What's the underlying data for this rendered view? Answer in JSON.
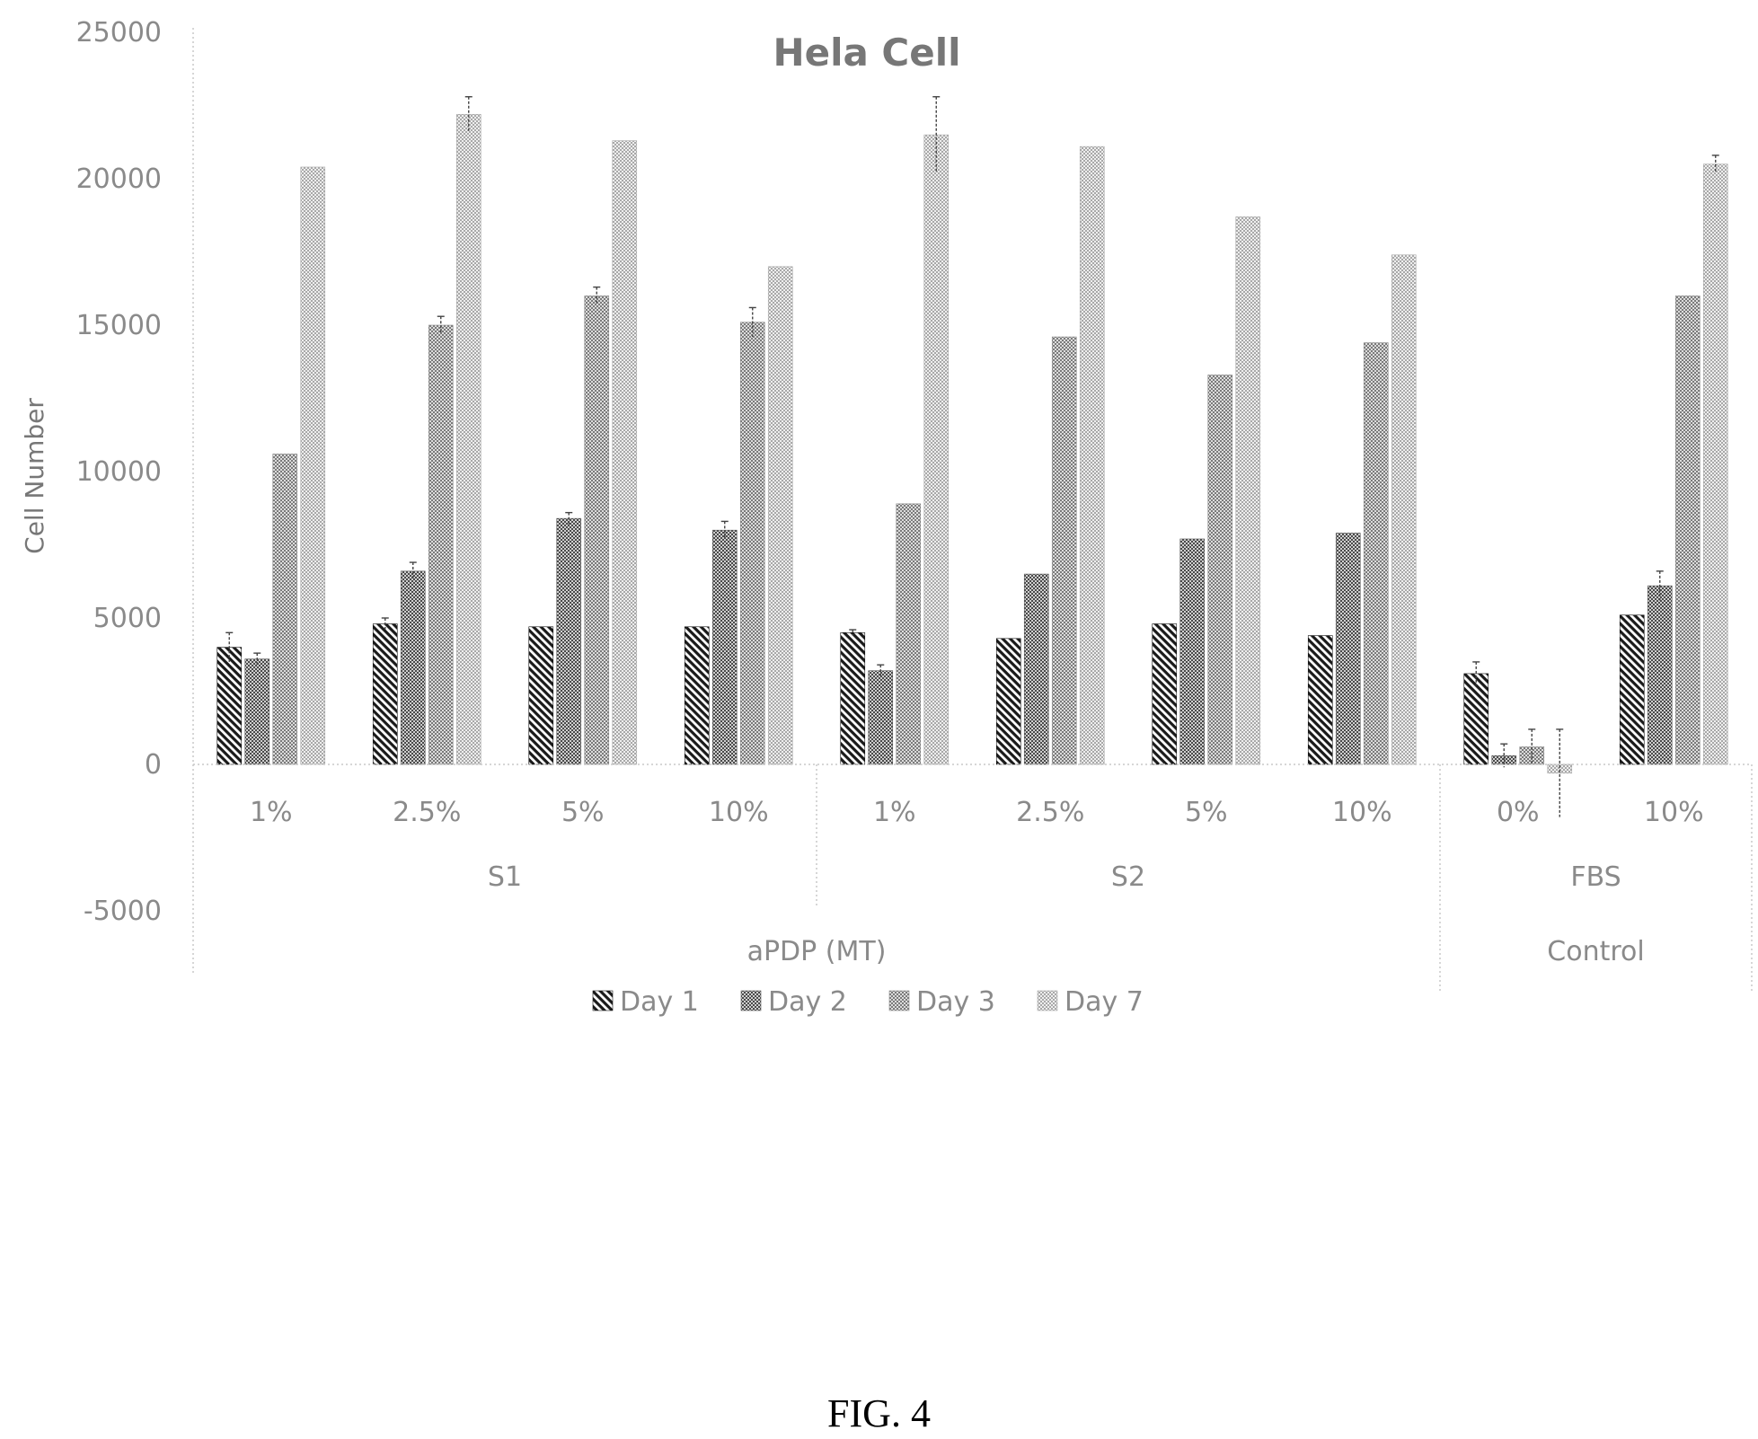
{
  "chart_data": {
    "type": "bar",
    "title": "Hela Cell",
    "ylabel": "Cell Number",
    "ylim": [
      -5000,
      25000
    ],
    "yticks": [
      -5000,
      0,
      5000,
      10000,
      15000,
      20000,
      25000
    ],
    "categories": [
      "1%",
      "2.5%",
      "5%",
      "10%",
      "1%",
      "2.5%",
      "5%",
      "10%",
      "0%",
      "10%"
    ],
    "groups_level1": [
      {
        "label": "S1",
        "span": [
          0,
          3
        ]
      },
      {
        "label": "S2",
        "span": [
          4,
          7
        ]
      },
      {
        "label": "FBS",
        "span": [
          8,
          9
        ]
      }
    ],
    "groups_level2": [
      {
        "label": "aPDP (MT)",
        "span": [
          0,
          7
        ]
      },
      {
        "label": "Control",
        "span": [
          8,
          9
        ]
      }
    ],
    "series": [
      {
        "name": "Day 1",
        "values": [
          4000,
          4800,
          4700,
          4700,
          4500,
          4300,
          4800,
          4400,
          3100,
          5100
        ],
        "errors": [
          500,
          200,
          0,
          0,
          100,
          0,
          0,
          0,
          400,
          0
        ]
      },
      {
        "name": "Day 2",
        "values": [
          3600,
          6600,
          8400,
          8000,
          3200,
          6500,
          7700,
          7900,
          300,
          6100
        ],
        "errors": [
          200,
          300,
          200,
          300,
          200,
          0,
          0,
          0,
          400,
          500
        ]
      },
      {
        "name": "Day 3",
        "values": [
          10600,
          15000,
          16000,
          15100,
          8900,
          14600,
          13300,
          14400,
          600,
          16000
        ],
        "errors": [
          0,
          300,
          300,
          500,
          0,
          0,
          0,
          0,
          600,
          0
        ]
      },
      {
        "name": "Day 7",
        "values": [
          20400,
          22200,
          21300,
          17000,
          21500,
          21100,
          18700,
          17400,
          -300,
          20500
        ],
        "errors": [
          0,
          600,
          0,
          0,
          1300,
          0,
          0,
          0,
          1500,
          300
        ]
      }
    ],
    "legend_position": "bottom",
    "grid": false
  },
  "caption": "FIG. 4"
}
